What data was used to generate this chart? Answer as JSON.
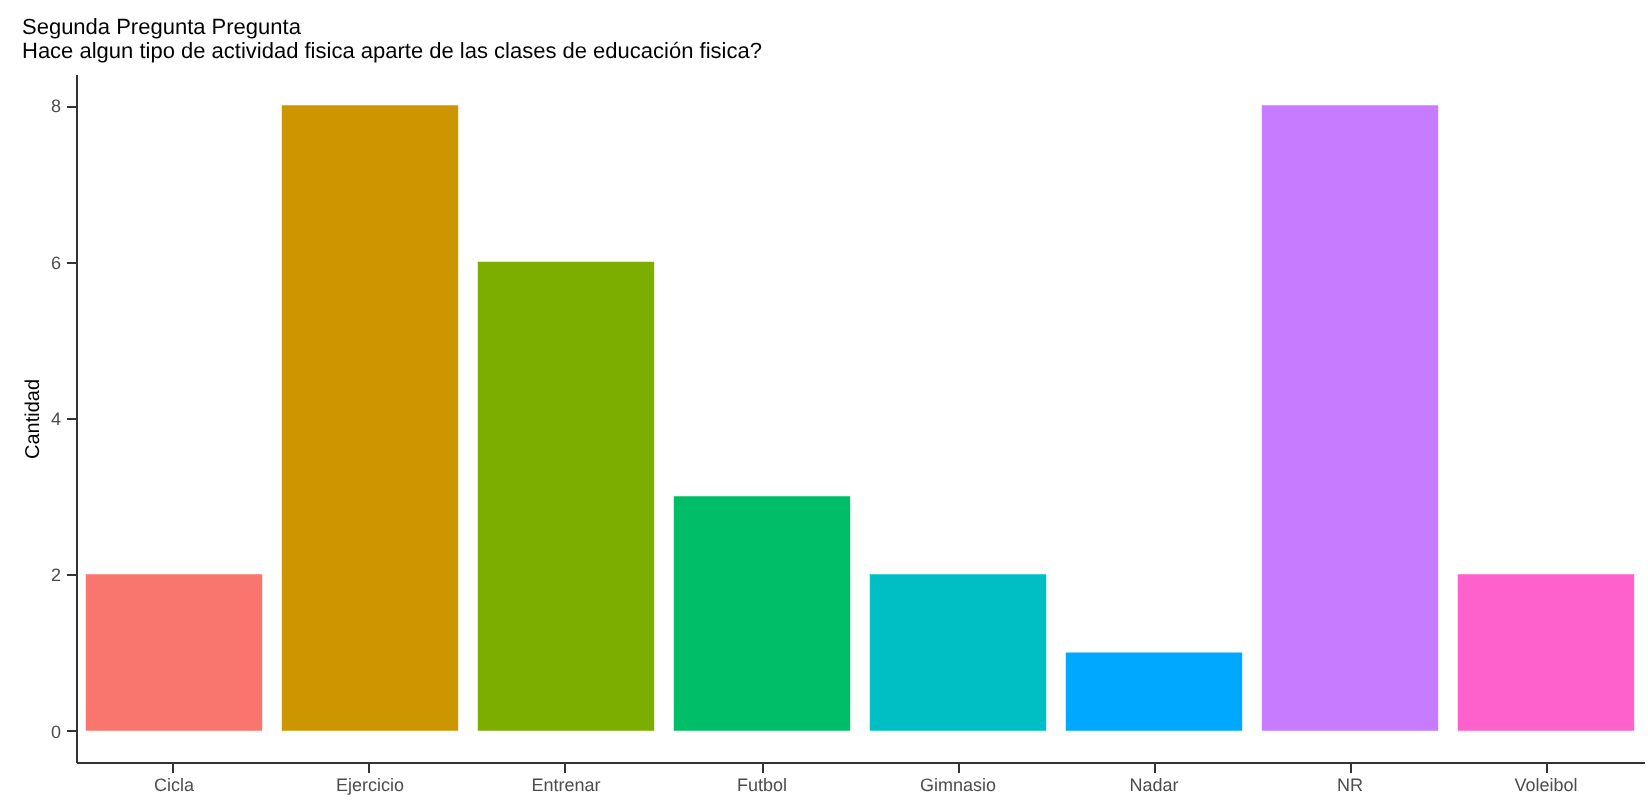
{
  "chart_data": {
    "type": "bar",
    "title": "Segunda Pregunta Pregunta",
    "subtitle": "Hace algun tipo de actividad fisica aparte de las clases de educación fisica?",
    "ylabel": "Cantidad",
    "categories": [
      "Cicla",
      "Ejercicio",
      "Entrenar",
      "Futbol",
      "Gimnasio",
      "Nadar",
      "NR",
      "Voleibol"
    ],
    "values": [
      2,
      8,
      6,
      3,
      2,
      1,
      8,
      2
    ],
    "colors": [
      "#f8766d",
      "#cd9600",
      "#7cae00",
      "#00be67",
      "#00bfc4",
      "#00a9ff",
      "#c77cff",
      "#ff61cc"
    ],
    "ylim": [
      -0.4,
      8.4
    ],
    "yticks": [
      0,
      2,
      4,
      6,
      8
    ],
    "grid": false,
    "legend": false
  }
}
